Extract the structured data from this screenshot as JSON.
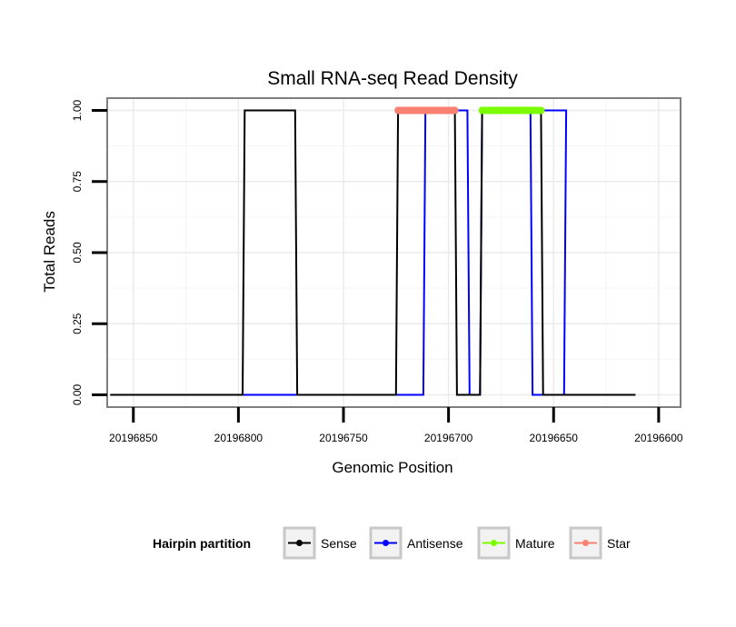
{
  "chart_data": {
    "type": "line",
    "title": "Small RNA-seq Read Density",
    "xlabel": "Genomic Position",
    "ylabel": "Total Reads",
    "x_reversed": true,
    "xlim": [
      20196862,
      20196590
    ],
    "ylim": [
      -0.04,
      1.04
    ],
    "x_ticks": [
      20196850,
      20196800,
      20196750,
      20196700,
      20196650,
      20196600
    ],
    "x_tick_labels": [
      "20196850",
      "20196800",
      "20196750",
      "20196700",
      "20196650",
      "20196600"
    ],
    "y_ticks": [
      0,
      0.25,
      0.5,
      0.75,
      1
    ],
    "y_tick_labels": [
      "0.00",
      "0.25",
      "0.50",
      "0.75",
      "1.00"
    ],
    "grid": true,
    "series": [
      {
        "name": "Sense",
        "color": "#000000",
        "x": [
          20196861,
          20196798,
          20196797,
          20196773,
          20196772,
          20196725,
          20196724,
          20196697,
          20196696,
          20196685,
          20196684,
          20196656,
          20196655,
          20196611
        ],
        "y": [
          0,
          0,
          1,
          1,
          0,
          0,
          1,
          1,
          0,
          0,
          1,
          1,
          0,
          0
        ]
      },
      {
        "name": "Antisense",
        "color": "#0000ff",
        "x": [
          20196798,
          20196712,
          20196711,
          20196691,
          20196690,
          20196685,
          20196684,
          20196661,
          20196660,
          20196645,
          20196644,
          20196656
        ],
        "y": [
          0,
          0,
          1,
          1,
          0,
          0,
          1,
          1,
          0,
          0,
          1,
          1
        ]
      },
      {
        "name": "Mature",
        "color": "#7cfc00",
        "x": [
          20196684,
          20196656
        ],
        "y": [
          1,
          1
        ]
      },
      {
        "name": "Star",
        "color": "#fa8072",
        "x": [
          20196724,
          20196697
        ],
        "y": [
          1,
          1
        ]
      }
    ],
    "legend": {
      "title": "Hairpin partition",
      "position": "bottom",
      "entries": [
        {
          "label": "Sense",
          "color": "#000000"
        },
        {
          "label": "Antisense",
          "color": "#0000ff"
        },
        {
          "label": "Mature",
          "color": "#7cfc00"
        },
        {
          "label": "Star",
          "color": "#fa8072"
        }
      ]
    }
  }
}
